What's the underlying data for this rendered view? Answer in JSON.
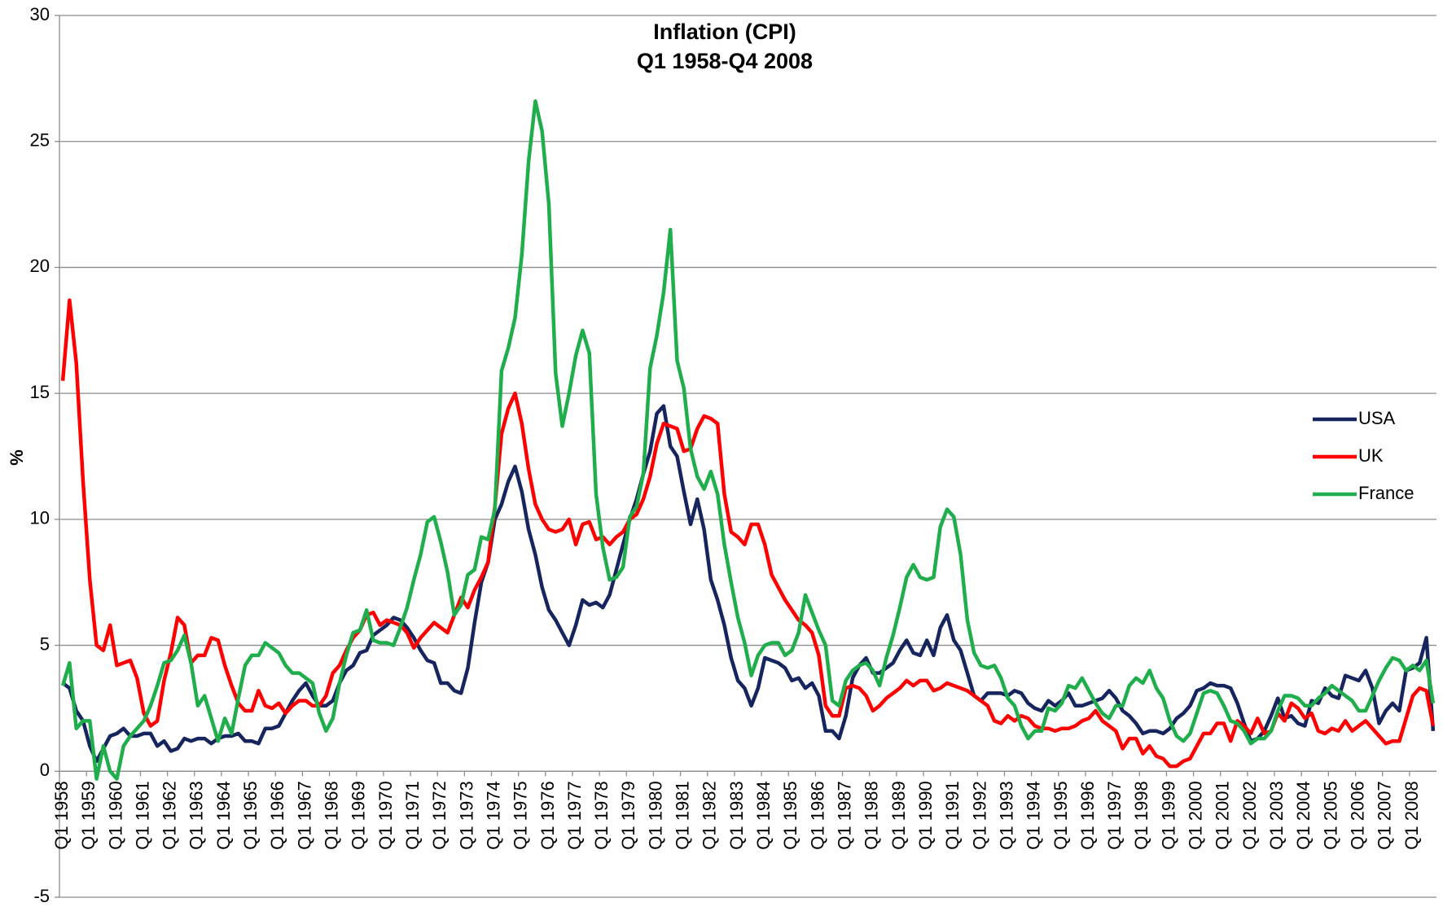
{
  "chart_data": {
    "type": "line",
    "title": "Inflation (CPI)",
    "subtitle": "Q1 1958-Q4 2008",
    "y_label": "%",
    "categories": [
      "Q1 1958",
      null,
      null,
      null,
      "Q1 1959",
      null,
      null,
      null,
      "Q1 1960",
      null,
      null,
      null,
      "Q1 1961",
      null,
      null,
      null,
      "Q1 1962",
      null,
      null,
      null,
      "Q1 1963",
      null,
      null,
      null,
      "Q1 1964",
      null,
      null,
      null,
      "Q1 1965",
      null,
      null,
      null,
      "Q1 1966",
      null,
      null,
      null,
      "Q1 1967",
      null,
      null,
      null,
      "Q1 1968",
      null,
      null,
      null,
      "Q1 1969",
      null,
      null,
      null,
      "Q1 1970",
      null,
      null,
      null,
      "Q1 1971",
      null,
      null,
      null,
      "Q1 1972",
      null,
      null,
      null,
      "Q1 1973",
      null,
      null,
      null,
      "Q1 1974",
      null,
      null,
      null,
      "Q1 1975",
      null,
      null,
      null,
      "Q1 1976",
      null,
      null,
      null,
      "Q1 1977",
      null,
      null,
      null,
      "Q1 1978",
      null,
      null,
      null,
      "Q1 1979",
      null,
      null,
      null,
      "Q1 1980",
      null,
      null,
      null,
      "Q1 1981",
      null,
      null,
      null,
      "Q1 1982",
      null,
      null,
      null,
      "Q1 1983",
      null,
      null,
      null,
      "Q1 1984",
      null,
      null,
      null,
      "Q1 1985",
      null,
      null,
      null,
      "Q1 1986",
      null,
      null,
      null,
      "Q1 1987",
      null,
      null,
      null,
      "Q1 1988",
      null,
      null,
      null,
      "Q1 1989",
      null,
      null,
      null,
      "Q1 1990",
      null,
      null,
      null,
      "Q1 1991",
      null,
      null,
      null,
      "Q1 1992",
      null,
      null,
      null,
      "Q1 1993",
      null,
      null,
      null,
      "Q1 1994",
      null,
      null,
      null,
      "Q1 1995",
      null,
      null,
      null,
      "Q1 1996",
      null,
      null,
      null,
      "Q1 1997",
      null,
      null,
      null,
      "Q1 1998",
      null,
      null,
      null,
      "Q1 1999",
      null,
      null,
      null,
      "Q1 2000",
      null,
      null,
      null,
      "Q1 2001",
      null,
      null,
      null,
      "Q1 2002",
      null,
      null,
      null,
      "Q1 2003",
      null,
      null,
      null,
      "Q1 2004",
      null,
      null,
      null,
      "Q1 2005",
      null,
      null,
      null,
      "Q1 2006",
      null,
      null,
      null,
      "Q1 2007",
      null,
      null,
      null,
      "Q1 2008",
      null,
      null,
      null
    ],
    "series": [
      {
        "name": "USA",
        "color": "#17255f",
        "values": [
          3.5,
          3.3,
          2.4,
          2.0,
          1.0,
          0.4,
          0.9,
          1.4,
          1.5,
          1.7,
          1.4,
          1.4,
          1.5,
          1.5,
          1.0,
          1.2,
          0.8,
          0.9,
          1.3,
          1.2,
          1.3,
          1.3,
          1.1,
          1.3,
          1.4,
          1.4,
          1.5,
          1.2,
          1.2,
          1.1,
          1.7,
          1.7,
          1.8,
          2.3,
          2.8,
          3.2,
          3.5,
          3.0,
          2.6,
          2.6,
          2.8,
          3.5,
          4.0,
          4.2,
          4.7,
          4.8,
          5.4,
          5.6,
          5.8,
          6.1,
          6.0,
          5.7,
          5.3,
          4.8,
          4.4,
          4.3,
          3.5,
          3.5,
          3.2,
          3.1,
          4.1,
          5.9,
          7.5,
          8.3,
          10.0,
          10.6,
          11.5,
          12.1,
          11.1,
          9.6,
          8.6,
          7.3,
          6.4,
          6.0,
          5.5,
          5.0,
          5.8,
          6.8,
          6.6,
          6.7,
          6.5,
          7.0,
          8.0,
          9.0,
          10.0,
          10.8,
          11.8,
          12.7,
          14.2,
          14.5,
          12.9,
          12.5,
          11.1,
          9.8,
          10.8,
          9.6,
          7.6,
          6.8,
          5.8,
          4.5,
          3.6,
          3.3,
          2.6,
          3.3,
          4.5,
          4.4,
          4.3,
          4.1,
          3.6,
          3.7,
          3.3,
          3.5,
          3.0,
          1.6,
          1.6,
          1.3,
          2.2,
          3.7,
          4.2,
          4.5,
          3.9,
          3.9,
          4.1,
          4.3,
          4.8,
          5.2,
          4.7,
          4.6,
          5.2,
          4.6,
          5.7,
          6.2,
          5.2,
          4.8,
          3.9,
          3.0,
          2.8,
          3.1,
          3.1,
          3.1,
          3.0,
          3.2,
          3.1,
          2.7,
          2.5,
          2.4,
          2.8,
          2.6,
          2.8,
          3.1,
          2.6,
          2.6,
          2.7,
          2.8,
          2.9,
          3.2,
          2.9,
          2.4,
          2.2,
          1.9,
          1.5,
          1.6,
          1.6,
          1.5,
          1.7,
          2.1,
          2.3,
          2.6,
          3.2,
          3.3,
          3.5,
          3.4,
          3.4,
          3.3,
          2.7,
          1.9,
          1.2,
          1.3,
          1.6,
          2.2,
          2.9,
          2.1,
          2.2,
          1.9,
          1.8,
          2.8,
          2.7,
          3.3,
          3.0,
          2.9,
          3.8,
          3.7,
          3.6,
          4.0,
          3.3,
          1.9,
          2.4,
          2.7,
          2.4,
          4.0,
          4.1,
          4.3,
          5.3,
          1.6
        ]
      },
      {
        "name": "UK",
        "color": "#ff0000",
        "values": [
          15.5,
          18.7,
          16.2,
          11.5,
          7.6,
          5.0,
          4.8,
          5.8,
          4.2,
          4.3,
          4.4,
          3.7,
          2.3,
          1.8,
          2.0,
          3.6,
          4.7,
          6.1,
          5.8,
          4.3,
          4.6,
          4.6,
          5.3,
          5.2,
          4.2,
          3.4,
          2.7,
          2.4,
          2.4,
          3.2,
          2.6,
          2.5,
          2.7,
          2.3,
          2.6,
          2.8,
          2.8,
          2.6,
          2.6,
          3.0,
          3.9,
          4.2,
          4.8,
          5.3,
          5.6,
          6.2,
          6.3,
          5.8,
          6.0,
          5.9,
          5.8,
          5.5,
          4.9,
          5.3,
          5.6,
          5.9,
          5.7,
          5.5,
          6.2,
          6.9,
          6.5,
          7.2,
          7.7,
          8.3,
          10.5,
          13.4,
          14.4,
          15.0,
          13.8,
          12.0,
          10.6,
          10.0,
          9.6,
          9.5,
          9.6,
          10.0,
          9.0,
          9.8,
          9.9,
          9.2,
          9.3,
          9.0,
          9.3,
          9.5,
          10.0,
          10.2,
          10.8,
          11.7,
          13.0,
          13.8,
          13.7,
          13.6,
          12.7,
          12.8,
          13.6,
          14.1,
          14.0,
          13.8,
          11.0,
          9.5,
          9.3,
          9.0,
          9.8,
          9.8,
          9.0,
          7.8,
          7.3,
          6.8,
          6.4,
          6.0,
          5.8,
          5.5,
          4.6,
          2.6,
          2.2,
          2.2,
          3.3,
          3.4,
          3.3,
          3.0,
          2.4,
          2.6,
          2.9,
          3.1,
          3.3,
          3.6,
          3.4,
          3.6,
          3.6,
          3.2,
          3.3,
          3.5,
          3.4,
          3.3,
          3.2,
          3.0,
          2.8,
          2.6,
          2.0,
          1.9,
          2.2,
          2.0,
          2.2,
          2.1,
          1.8,
          1.7,
          1.7,
          1.6,
          1.7,
          1.7,
          1.8,
          2.0,
          2.1,
          2.4,
          2.0,
          1.8,
          1.6,
          0.9,
          1.3,
          1.3,
          0.7,
          1.0,
          0.6,
          0.5,
          0.2,
          0.2,
          0.4,
          0.5,
          1.0,
          1.5,
          1.5,
          1.9,
          1.9,
          1.2,
          2.0,
          1.8,
          1.5,
          2.1,
          1.5,
          1.6,
          2.3,
          2.0,
          2.7,
          2.5,
          2.1,
          2.3,
          1.6,
          1.5,
          1.7,
          1.6,
          2.0,
          1.6,
          1.8,
          2.0,
          1.7,
          1.4,
          1.1,
          1.2,
          1.2,
          2.1,
          3.0,
          3.3,
          3.2,
          1.8
        ]
      },
      {
        "name": "France",
        "color": "#1fae4b",
        "values": [
          3.4,
          4.3,
          1.7,
          2.0,
          2.0,
          -0.3,
          1.0,
          0.0,
          -0.3,
          1.0,
          1.4,
          1.7,
          2.0,
          2.6,
          3.4,
          4.3,
          4.4,
          4.8,
          5.4,
          4.3,
          2.6,
          3.0,
          2.1,
          1.2,
          2.1,
          1.5,
          2.9,
          4.2,
          4.6,
          4.6,
          5.1,
          4.9,
          4.7,
          4.2,
          3.9,
          3.9,
          3.7,
          3.5,
          2.3,
          1.6,
          2.1,
          3.5,
          4.6,
          5.5,
          5.6,
          6.4,
          5.2,
          5.1,
          5.1,
          5.0,
          5.7,
          6.5,
          7.6,
          8.6,
          9.9,
          10.1,
          9.1,
          7.9,
          6.2,
          6.6,
          7.8,
          8.0,
          9.3,
          9.2,
          10.4,
          15.9,
          16.8,
          18.0,
          20.5,
          24.2,
          26.6,
          25.4,
          22.5,
          15.8,
          13.7,
          15.0,
          16.5,
          17.5,
          16.6,
          11.0,
          8.9,
          7.6,
          7.7,
          8.1,
          10.1,
          10.5,
          11.8,
          16.0,
          17.3,
          19.0,
          21.5,
          16.3,
          15.2,
          12.8,
          11.7,
          11.2,
          11.9,
          11.0,
          9.0,
          7.5,
          6.1,
          5.1,
          3.8,
          4.6,
          5.0,
          5.1,
          5.1,
          4.6,
          4.8,
          5.5,
          7.0,
          6.3,
          5.6,
          5.0,
          2.8,
          2.6,
          3.6,
          4.0,
          4.2,
          4.3,
          4.0,
          3.4,
          4.5,
          5.4,
          6.5,
          7.7,
          8.2,
          7.7,
          7.6,
          7.7,
          9.7,
          10.4,
          10.1,
          8.6,
          6.0,
          4.7,
          4.2,
          4.1,
          4.2,
          3.7,
          2.9,
          2.6,
          1.8,
          1.3,
          1.6,
          1.6,
          2.5,
          2.4,
          2.7,
          3.4,
          3.3,
          3.7,
          3.2,
          2.7,
          2.3,
          2.1,
          2.6,
          2.6,
          3.4,
          3.7,
          3.5,
          4.0,
          3.3,
          2.9,
          2.0,
          1.4,
          1.2,
          1.5,
          2.3,
          3.1,
          3.2,
          3.1,
          2.6,
          2.0,
          1.9,
          1.6,
          1.1,
          1.3,
          1.3,
          1.6,
          2.4,
          3.0,
          3.0,
          2.9,
          2.6,
          2.6,
          2.9,
          3.1,
          3.4,
          3.2,
          3.0,
          2.8,
          2.4,
          2.4,
          3.0,
          3.6,
          4.1,
          4.5,
          4.4,
          4.0,
          4.2,
          4.0,
          4.4,
          2.7
        ]
      }
    ],
    "ylim": [
      -5,
      30
    ],
    "yticks": [
      -5,
      0,
      5,
      10,
      15,
      20,
      25,
      30
    ],
    "grid": true,
    "legend": "right"
  }
}
